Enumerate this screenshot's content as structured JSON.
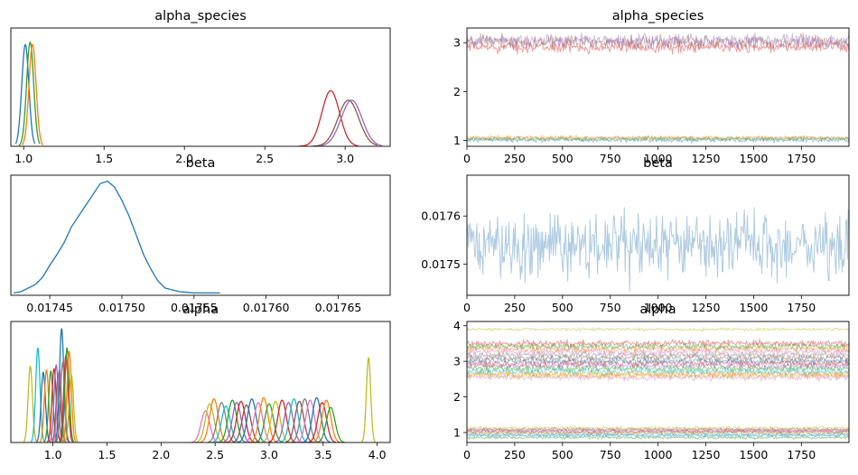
{
  "chart_data": [
    {
      "id": "p1",
      "type": "line",
      "kind": "density",
      "title": "alpha_species",
      "xlim": [
        0.92,
        3.28
      ],
      "ylim": [
        0,
        10
      ],
      "xticks": [
        1.0,
        1.5,
        2.0,
        2.5,
        3.0
      ],
      "xtick_labels": [
        "1.0",
        "1.5",
        "2.0",
        "2.5",
        "3.0"
      ],
      "yticks": [],
      "series": [
        {
          "color": "#1f77b4",
          "mean": 1.01,
          "sd": 0.022,
          "peak": 8.6,
          "range": [
            0.95,
            1.07
          ]
        },
        {
          "color": "#2ca02c",
          "mean": 1.04,
          "sd": 0.022,
          "peak": 8.8,
          "range": [
            0.97,
            1.1
          ]
        },
        {
          "color": "#ff7f0e",
          "mean": 1.055,
          "sd": 0.022,
          "peak": 8.6,
          "range": [
            0.99,
            1.12
          ]
        },
        {
          "color": "#d62728",
          "mean": 2.91,
          "sd": 0.055,
          "peak": 4.7,
          "range": [
            2.71,
            3.08
          ]
        },
        {
          "color": "#8c564b",
          "mean": 3.02,
          "sd": 0.065,
          "peak": 3.9,
          "range": [
            2.8,
            3.2
          ]
        },
        {
          "color": "#9467bd",
          "mean": 3.04,
          "sd": 0.065,
          "peak": 3.9,
          "range": [
            2.85,
            3.23
          ]
        }
      ]
    },
    {
      "id": "p2",
      "type": "line",
      "kind": "trace",
      "title": "alpha_species",
      "xlim": [
        0,
        1999
      ],
      "ylim": [
        0.88,
        3.3
      ],
      "xticks": [
        0,
        250,
        500,
        750,
        1000,
        1250,
        1500,
        1750
      ],
      "xtick_labels": [
        "0",
        "250",
        "500",
        "750",
        "1000",
        "1250",
        "1500",
        "1750"
      ],
      "yticks": [
        1,
        2,
        3
      ],
      "ytick_labels": [
        "1",
        "2",
        "3"
      ],
      "series": [
        {
          "color": "#d62728",
          "level": 2.91,
          "noise": 0.05
        },
        {
          "color": "#8c564b",
          "level": 3.02,
          "noise": 0.06
        },
        {
          "color": "#9467bd",
          "level": 3.04,
          "noise": 0.06
        },
        {
          "color": "#1f77b4",
          "level": 1.01,
          "noise": 0.02
        },
        {
          "color": "#2ca02c",
          "level": 1.04,
          "noise": 0.02
        },
        {
          "color": "#ff7f0e",
          "level": 1.055,
          "noise": 0.02
        }
      ]
    },
    {
      "id": "p3",
      "type": "line",
      "kind": "density",
      "title": "beta",
      "xlim": [
        0.017423,
        0.017686
      ],
      "ylim": [
        0,
        10
      ],
      "xticks": [
        0.01745,
        0.0175,
        0.01755,
        0.0176,
        0.01765
      ],
      "xtick_labels": [
        "0.01745",
        "0.01750",
        "0.01755",
        "0.01760",
        "0.01765"
      ],
      "yticks": [],
      "series": [
        {
          "color": "#1f77b4",
          "points": [
            [
              0.017425,
              0.2
            ],
            [
              0.01743,
              0.3
            ],
            [
              0.01744,
              0.9
            ],
            [
              0.017445,
              1.5
            ],
            [
              0.01745,
              2.5
            ],
            [
              0.017455,
              3.4
            ],
            [
              0.01746,
              4.4
            ],
            [
              0.017465,
              5.7
            ],
            [
              0.01747,
              6.6
            ],
            [
              0.017475,
              7.5
            ],
            [
              0.01748,
              8.4
            ],
            [
              0.017485,
              9.3
            ],
            [
              0.01749,
              9.5
            ],
            [
              0.017495,
              9.0
            ],
            [
              0.0175,
              7.9
            ],
            [
              0.017505,
              6.6
            ],
            [
              0.01751,
              5.0
            ],
            [
              0.017515,
              3.4
            ],
            [
              0.01752,
              2.2
            ],
            [
              0.017525,
              1.2
            ],
            [
              0.01753,
              0.6
            ],
            [
              0.017535,
              0.45
            ],
            [
              0.01754,
              0.3
            ],
            [
              0.017545,
              0.25
            ],
            [
              0.01755,
              0.2
            ],
            [
              0.017555,
              0.2
            ],
            [
              0.01756,
              0.2
            ],
            [
              0.017565,
              0.2
            ],
            [
              0.017568,
              0.2
            ]
          ]
        }
      ]
    },
    {
      "id": "p4",
      "type": "line",
      "kind": "trace",
      "title": "beta",
      "xlim": [
        0,
        1999
      ],
      "ylim": [
        0.017435,
        0.017685
      ],
      "xticks": [
        0,
        250,
        500,
        750,
        1000,
        1250,
        1500,
        1750
      ],
      "xtick_labels": [
        "0",
        "250",
        "500",
        "750",
        "1000",
        "1250",
        "1500",
        "1750"
      ],
      "yticks": [
        0.0175,
        0.0176
      ],
      "ytick_labels": [
        "0.0175",
        "0.0176"
      ],
      "series": [
        {
          "color": "#aecbe2",
          "level": 0.017538,
          "noise": 3e-05
        }
      ]
    },
    {
      "id": "p5",
      "type": "line",
      "kind": "density",
      "title": "alpha",
      "xlim": [
        0.61,
        4.12
      ],
      "ylim": [
        0,
        10
      ],
      "xticks": [
        1.0,
        1.5,
        2.0,
        2.5,
        3.0,
        3.5,
        4.0
      ],
      "xtick_labels": [
        "1.0",
        "1.5",
        "2.0",
        "2.5",
        "3.0",
        "3.5",
        "4.0"
      ],
      "yticks": [],
      "series": [
        {
          "color": "#bcbd22",
          "mean": 0.79,
          "sd": 0.02,
          "peak": 6.3
        },
        {
          "color": "#17becf",
          "mean": 0.86,
          "sd": 0.02,
          "peak": 7.8
        },
        {
          "color": "#1f77b4",
          "mean": 0.91,
          "sd": 0.02,
          "peak": 5.8
        },
        {
          "color": "#ff7f0e",
          "mean": 0.94,
          "sd": 0.02,
          "peak": 6.0
        },
        {
          "color": "#2ca02c",
          "mean": 0.98,
          "sd": 0.02,
          "peak": 5.9
        },
        {
          "color": "#d62728",
          "mean": 1.01,
          "sd": 0.02,
          "peak": 6.1
        },
        {
          "color": "#9467bd",
          "mean": 1.03,
          "sd": 0.02,
          "peak": 6.4
        },
        {
          "color": "#8c564b",
          "mean": 1.05,
          "sd": 0.02,
          "peak": 5.7
        },
        {
          "color": "#e377c2",
          "mean": 1.06,
          "sd": 0.02,
          "peak": 6.0
        },
        {
          "color": "#1f77b4",
          "mean": 1.08,
          "sd": 0.02,
          "peak": 9.4
        },
        {
          "color": "#7f7f7f",
          "mean": 1.09,
          "sd": 0.02,
          "peak": 6.6
        },
        {
          "color": "#d62728",
          "mean": 1.12,
          "sd": 0.02,
          "peak": 7.2
        },
        {
          "color": "#2ca02c",
          "mean": 1.13,
          "sd": 0.02,
          "peak": 7.8
        },
        {
          "color": "#ff7f0e",
          "mean": 1.15,
          "sd": 0.02,
          "peak": 7.5
        },
        {
          "color": "#bcbd22",
          "mean": 1.17,
          "sd": 0.02,
          "peak": 5.6
        },
        {
          "color": "#e377c2",
          "mean": 2.41,
          "sd": 0.04,
          "peak": 2.6
        },
        {
          "color": "#bcbd22",
          "mean": 2.45,
          "sd": 0.04,
          "peak": 3.2
        },
        {
          "color": "#ff7f0e",
          "mean": 2.49,
          "sd": 0.04,
          "peak": 3.6
        },
        {
          "color": "#7f7f7f",
          "mean": 2.56,
          "sd": 0.04,
          "peak": 3.3
        },
        {
          "color": "#17becf",
          "mean": 2.6,
          "sd": 0.04,
          "peak": 3.0
        },
        {
          "color": "#2ca02c",
          "mean": 2.66,
          "sd": 0.04,
          "peak": 3.5
        },
        {
          "color": "#9467bd",
          "mean": 2.7,
          "sd": 0.04,
          "peak": 3.3
        },
        {
          "color": "#d62728",
          "mean": 2.74,
          "sd": 0.04,
          "peak": 3.4
        },
        {
          "color": "#8c564b",
          "mean": 2.79,
          "sd": 0.04,
          "peak": 3.1
        },
        {
          "color": "#1f77b4",
          "mean": 2.84,
          "sd": 0.04,
          "peak": 3.6
        },
        {
          "color": "#e377c2",
          "mean": 2.9,
          "sd": 0.04,
          "peak": 3.3
        },
        {
          "color": "#ff7f0e",
          "mean": 2.95,
          "sd": 0.04,
          "peak": 3.7
        },
        {
          "color": "#2ca02c",
          "mean": 3.0,
          "sd": 0.04,
          "peak": 3.2
        },
        {
          "color": "#bcbd22",
          "mean": 3.06,
          "sd": 0.04,
          "peak": 3.4
        },
        {
          "color": "#d62728",
          "mean": 3.12,
          "sd": 0.04,
          "peak": 3.5
        },
        {
          "color": "#9467bd",
          "mean": 3.18,
          "sd": 0.04,
          "peak": 3.3
        },
        {
          "color": "#17becf",
          "mean": 3.23,
          "sd": 0.04,
          "peak": 3.6
        },
        {
          "color": "#8c564b",
          "mean": 3.28,
          "sd": 0.04,
          "peak": 3.4
        },
        {
          "color": "#7f7f7f",
          "mean": 3.33,
          "sd": 0.04,
          "peak": 3.6
        },
        {
          "color": "#e377c2",
          "mean": 3.38,
          "sd": 0.04,
          "peak": 3.5
        },
        {
          "color": "#1f77b4",
          "mean": 3.44,
          "sd": 0.04,
          "peak": 3.7
        },
        {
          "color": "#d62728",
          "mean": 3.49,
          "sd": 0.04,
          "peak": 3.3
        },
        {
          "color": "#ff7f0e",
          "mean": 3.53,
          "sd": 0.04,
          "peak": 3.5
        },
        {
          "color": "#2ca02c",
          "mean": 3.57,
          "sd": 0.04,
          "peak": 2.9
        },
        {
          "color": "#bcbd22",
          "mean": 3.92,
          "sd": 0.02,
          "peak": 7.0
        }
      ]
    },
    {
      "id": "p6",
      "type": "line",
      "kind": "trace",
      "title": "alpha",
      "xlim": [
        0,
        1999
      ],
      "ylim": [
        0.72,
        4.12
      ],
      "xticks": [
        0,
        250,
        500,
        750,
        1000,
        1250,
        1500,
        1750
      ],
      "xtick_labels": [
        "0",
        "250",
        "500",
        "750",
        "1000",
        "1250",
        "1500",
        "1750"
      ],
      "yticks": [
        1,
        2,
        3,
        4
      ],
      "ytick_labels": [
        "1",
        "2",
        "3",
        "4"
      ],
      "series": [
        {
          "color": "#e377c2",
          "level": 2.55,
          "noise": 0.04
        },
        {
          "color": "#bcbd22",
          "level": 2.6,
          "noise": 0.04
        },
        {
          "color": "#ff7f0e",
          "level": 2.65,
          "noise": 0.04
        },
        {
          "color": "#17becf",
          "level": 2.72,
          "noise": 0.04
        },
        {
          "color": "#2ca02c",
          "level": 2.8,
          "noise": 0.04
        },
        {
          "color": "#9467bd",
          "level": 2.88,
          "noise": 0.04
        },
        {
          "color": "#d62728",
          "level": 2.95,
          "noise": 0.04
        },
        {
          "color": "#1f77b4",
          "level": 3.02,
          "noise": 0.04
        },
        {
          "color": "#8c564b",
          "level": 3.1,
          "noise": 0.04
        },
        {
          "color": "#7f7f7f",
          "level": 3.18,
          "noise": 0.04
        },
        {
          "color": "#e377c2",
          "level": 3.27,
          "noise": 0.04
        },
        {
          "color": "#ff7f0e",
          "level": 3.35,
          "noise": 0.04
        },
        {
          "color": "#2ca02c",
          "level": 3.42,
          "noise": 0.04
        },
        {
          "color": "#d62728",
          "level": 3.5,
          "noise": 0.04
        },
        {
          "color": "#bcbd22",
          "level": 3.9,
          "noise": 0.02
        },
        {
          "color": "#2ca02c",
          "level": 0.86,
          "noise": 0.02
        },
        {
          "color": "#1f77b4",
          "level": 0.92,
          "noise": 0.02
        },
        {
          "color": "#17becf",
          "level": 0.96,
          "noise": 0.02
        },
        {
          "color": "#ff7f0e",
          "level": 1.0,
          "noise": 0.02
        },
        {
          "color": "#d62728",
          "level": 1.03,
          "noise": 0.02
        },
        {
          "color": "#9467bd",
          "level": 1.06,
          "noise": 0.02
        },
        {
          "color": "#8c564b",
          "level": 1.09,
          "noise": 0.02
        },
        {
          "color": "#bcbd22",
          "level": 1.13,
          "noise": 0.02
        }
      ]
    }
  ]
}
